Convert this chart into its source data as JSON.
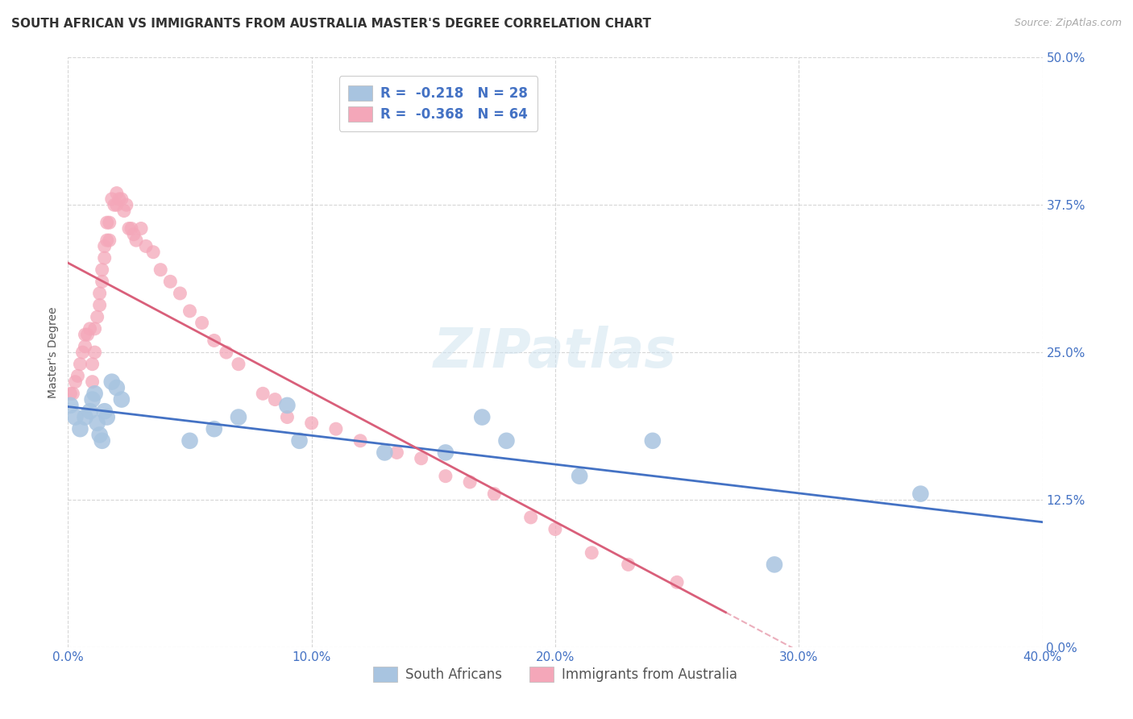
{
  "title": "SOUTH AFRICAN VS IMMIGRANTS FROM AUSTRALIA MASTER'S DEGREE CORRELATION CHART",
  "source": "Source: ZipAtlas.com",
  "ylabel": "Master's Degree",
  "xlim": [
    0.0,
    0.4
  ],
  "ylim": [
    0.0,
    0.5
  ],
  "watermark": "ZIPatlas",
  "blue_R": -0.218,
  "blue_N": 28,
  "pink_R": -0.368,
  "pink_N": 64,
  "blue_color": "#a8c4e0",
  "pink_color": "#f4a7b9",
  "blue_line_color": "#4472c4",
  "pink_line_color": "#d95f7a",
  "blue_label": "South Africans",
  "pink_label": "Immigrants from Australia",
  "blue_x": [
    0.001,
    0.003,
    0.005,
    0.007,
    0.009,
    0.01,
    0.011,
    0.012,
    0.013,
    0.014,
    0.015,
    0.016,
    0.018,
    0.02,
    0.022,
    0.05,
    0.06,
    0.07,
    0.09,
    0.095,
    0.13,
    0.155,
    0.17,
    0.18,
    0.21,
    0.24,
    0.29,
    0.35
  ],
  "blue_y": [
    0.205,
    0.195,
    0.185,
    0.195,
    0.2,
    0.21,
    0.215,
    0.19,
    0.18,
    0.175,
    0.2,
    0.195,
    0.225,
    0.22,
    0.21,
    0.175,
    0.185,
    0.195,
    0.205,
    0.175,
    0.165,
    0.165,
    0.195,
    0.175,
    0.145,
    0.175,
    0.07,
    0.13
  ],
  "pink_x": [
    0.001,
    0.002,
    0.003,
    0.004,
    0.005,
    0.006,
    0.007,
    0.007,
    0.008,
    0.009,
    0.01,
    0.01,
    0.011,
    0.011,
    0.012,
    0.013,
    0.013,
    0.014,
    0.014,
    0.015,
    0.015,
    0.016,
    0.016,
    0.017,
    0.017,
    0.018,
    0.019,
    0.02,
    0.02,
    0.021,
    0.022,
    0.023,
    0.024,
    0.025,
    0.026,
    0.027,
    0.028,
    0.03,
    0.032,
    0.035,
    0.038,
    0.042,
    0.046,
    0.05,
    0.055,
    0.06,
    0.065,
    0.07,
    0.08,
    0.085,
    0.09,
    0.1,
    0.11,
    0.12,
    0.135,
    0.145,
    0.155,
    0.165,
    0.175,
    0.19,
    0.2,
    0.215,
    0.23,
    0.25
  ],
  "pink_y": [
    0.215,
    0.215,
    0.225,
    0.23,
    0.24,
    0.25,
    0.255,
    0.265,
    0.265,
    0.27,
    0.225,
    0.24,
    0.25,
    0.27,
    0.28,
    0.29,
    0.3,
    0.31,
    0.32,
    0.33,
    0.34,
    0.345,
    0.36,
    0.345,
    0.36,
    0.38,
    0.375,
    0.385,
    0.375,
    0.38,
    0.38,
    0.37,
    0.375,
    0.355,
    0.355,
    0.35,
    0.345,
    0.355,
    0.34,
    0.335,
    0.32,
    0.31,
    0.3,
    0.285,
    0.275,
    0.26,
    0.25,
    0.24,
    0.215,
    0.21,
    0.195,
    0.19,
    0.185,
    0.175,
    0.165,
    0.16,
    0.145,
    0.14,
    0.13,
    0.11,
    0.1,
    0.08,
    0.07,
    0.055
  ],
  "title_fontsize": 11,
  "source_fontsize": 9,
  "axis_label_fontsize": 10,
  "tick_fontsize": 11,
  "legend_fontsize": 12,
  "watermark_fontsize": 48,
  "background_color": "#ffffff",
  "grid_color": "#cccccc"
}
